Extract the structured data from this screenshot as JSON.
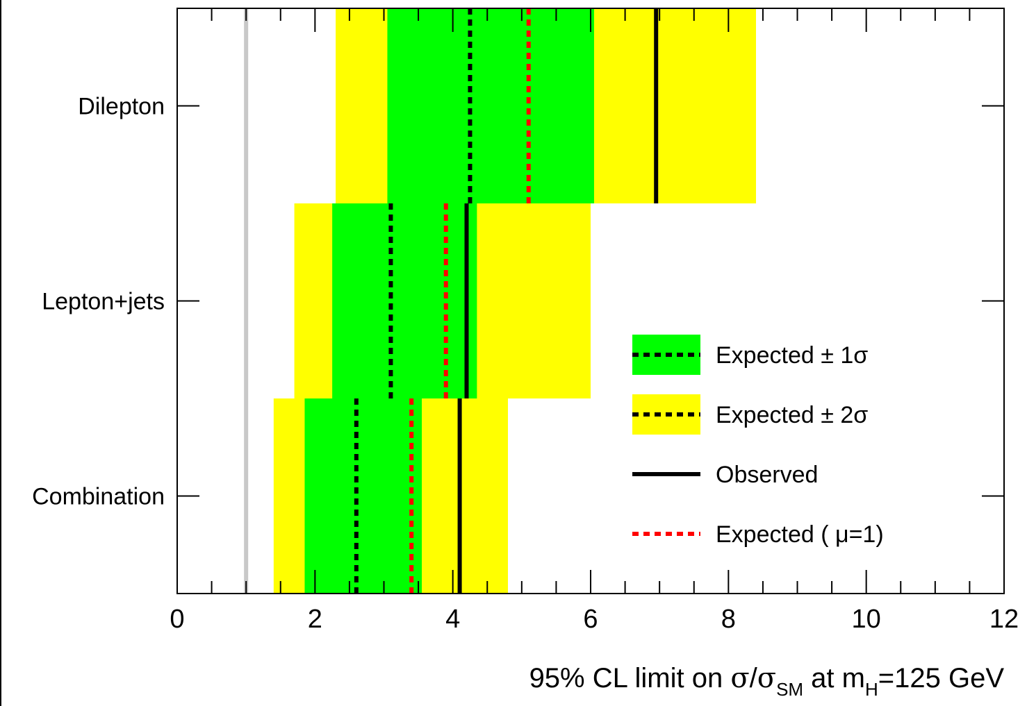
{
  "chart_data": {
    "type": "bar",
    "title": "",
    "xlabel": {
      "prefix": "95% CL limit on ",
      "sigma": "σ",
      "slash": "/",
      "sigma_sm": "σ",
      "sm_sub": "SM",
      "at": " at m",
      "h_sub": "H",
      "suffix": "=125 GeV"
    },
    "xlim": [
      0,
      12
    ],
    "x_ticks": [
      "0",
      "2",
      "4",
      "6",
      "8",
      "10",
      "12"
    ],
    "categories": [
      "Dilepton",
      "Lepton+jets",
      "Combination"
    ],
    "reference_line": 1.0,
    "series": [
      {
        "name": "Expected ± 2σ",
        "low": [
          2.3,
          1.7,
          1.4
        ],
        "high": [
          8.4,
          6.0,
          4.8
        ],
        "color": "#ffff00"
      },
      {
        "name": "Expected ± 1σ",
        "low": [
          3.05,
          2.25,
          1.85
        ],
        "high": [
          6.05,
          4.35,
          3.55
        ],
        "color": "#00ff00"
      },
      {
        "name": "Expected (μ=1)",
        "values": [
          5.1,
          3.9,
          3.4
        ],
        "color": "#ff0000"
      },
      {
        "name": "Expected",
        "values": [
          4.25,
          3.1,
          2.6
        ],
        "color": "#000000"
      },
      {
        "name": "Observed",
        "values": [
          6.95,
          4.2,
          4.1
        ],
        "color": "#000000"
      }
    ],
    "legend": {
      "position": "right",
      "entries": [
        {
          "key": "one_sigma",
          "text": "Expected",
          "pm": "± 1σ"
        },
        {
          "key": "two_sigma",
          "text": "Expected",
          "pm": "± 2σ"
        },
        {
          "key": "observed",
          "text": "Observed"
        },
        {
          "key": "expected_mu",
          "text": "Expected ( μ=1)"
        }
      ]
    },
    "grid": false
  }
}
